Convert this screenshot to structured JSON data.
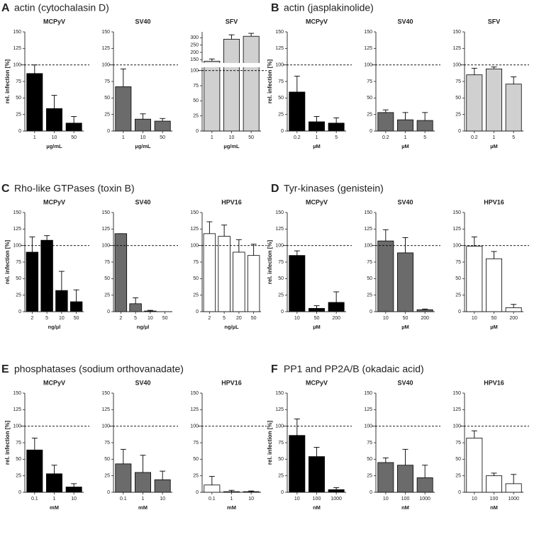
{
  "panels": [
    {
      "letter": "A",
      "title": "actin (cytochalasin D)"
    },
    {
      "letter": "B",
      "title": "actin (jasplakinolide)"
    },
    {
      "letter": "C",
      "title": "Rho-like GTPases (toxin B)"
    },
    {
      "letter": "D",
      "title": "Tyr-kinases (genistein)"
    },
    {
      "letter": "E",
      "title": "phosphatases (sodium orthovanadate)"
    },
    {
      "letter": "F",
      "title": "PP1 and PP2A/B (okadaic acid)"
    }
  ],
  "chart_data": [
    {
      "type": "bar",
      "title": "MCPyV",
      "ylabel": "rel. infection [%]",
      "xlabel": "µg/mL",
      "categories": [
        "1",
        "10",
        "50"
      ],
      "values": [
        87,
        34,
        12
      ],
      "errors": [
        13,
        20,
        10
      ],
      "color": "#000000",
      "ylim": [
        0,
        150
      ],
      "yticks": [
        0,
        25,
        50,
        75,
        100,
        125,
        150
      ],
      "refline": 100
    },
    {
      "type": "bar",
      "title": "SV40",
      "xlabel": "µg/mL",
      "categories": [
        "1",
        "10",
        "50"
      ],
      "values": [
        67,
        18,
        15
      ],
      "errors": [
        27,
        8,
        4
      ],
      "color": "#6b6b6b",
      "ylim": [
        0,
        150
      ],
      "yticks": [
        0,
        25,
        50,
        75,
        100,
        125,
        150
      ],
      "refline": 100
    },
    {
      "type": "bar",
      "title": "SFV",
      "xlabel": "µg/mL",
      "categories": [
        "1",
        "10",
        "50"
      ],
      "values": [
        140,
        290,
        310
      ],
      "errors": [
        15,
        30,
        20
      ],
      "color": "#d0d0d0",
      "ylim": [
        0,
        340
      ],
      "ybreak": [
        105,
        130
      ],
      "yticks": [
        0,
        25,
        50,
        75,
        100,
        150,
        200,
        250,
        300
      ],
      "refline": 100
    },
    {
      "type": "bar",
      "title": "MCPyV",
      "ylabel": "rel. infection [%]",
      "xlabel": "µM",
      "categories": [
        "0.2",
        "1",
        "5"
      ],
      "values": [
        59,
        14,
        12
      ],
      "errors": [
        24,
        8,
        8
      ],
      "color": "#000000",
      "ylim": [
        0,
        150
      ],
      "yticks": [
        0,
        25,
        50,
        75,
        100,
        125,
        150
      ],
      "refline": 100
    },
    {
      "type": "bar",
      "title": "SV40",
      "xlabel": "µM",
      "categories": [
        "0.2",
        "1",
        "5"
      ],
      "values": [
        28,
        17,
        16
      ],
      "errors": [
        4,
        11,
        12
      ],
      "color": "#6b6b6b",
      "ylim": [
        0,
        150
      ],
      "yticks": [
        0,
        25,
        50,
        75,
        100,
        125,
        150
      ],
      "refline": 100
    },
    {
      "type": "bar",
      "title": "SFV",
      "xlabel": "µM",
      "categories": [
        "0.2",
        "1",
        "5"
      ],
      "values": [
        85,
        94,
        71
      ],
      "errors": [
        10,
        3,
        11
      ],
      "color": "#d0d0d0",
      "ylim": [
        0,
        150
      ],
      "yticks": [
        0,
        25,
        50,
        75,
        100,
        125,
        150
      ],
      "refline": 100
    },
    {
      "type": "bar",
      "title": "MCPyV",
      "ylabel": "rel. infection [%]",
      "xlabel": "ng/µl",
      "categories": [
        "2",
        "5",
        "10",
        "50"
      ],
      "values": [
        90,
        108,
        32,
        15
      ],
      "errors": [
        23,
        7,
        29,
        18
      ],
      "color": "#000000",
      "ylim": [
        0,
        150
      ],
      "yticks": [
        0,
        25,
        50,
        75,
        100,
        125,
        150
      ],
      "refline": 100
    },
    {
      "type": "bar",
      "title": "SV40",
      "xlabel": "ng/µl",
      "categories": [
        "2",
        "5",
        "10",
        "50"
      ],
      "values": [
        118,
        12,
        1,
        0
      ],
      "errors": [
        0,
        9,
        1,
        0
      ],
      "color": "#6b6b6b",
      "ylim": [
        0,
        150
      ],
      "yticks": [
        0,
        25,
        50,
        75,
        100,
        125,
        150
      ],
      "refline": 100
    },
    {
      "type": "bar",
      "title": "HPV16",
      "xlabel": "ng/µL",
      "categories": [
        "2",
        "5",
        "20",
        "50"
      ],
      "values": [
        118,
        114,
        90,
        85
      ],
      "errors": [
        18,
        17,
        19,
        17
      ],
      "color": "#ffffff",
      "ylim": [
        0,
        150
      ],
      "yticks": [
        0,
        25,
        50,
        75,
        100,
        125,
        150
      ],
      "refline": 100
    },
    {
      "type": "bar",
      "title": "MCPyV",
      "ylabel": "rel. infection [%]",
      "xlabel": "µM",
      "categories": [
        "10",
        "50",
        "200"
      ],
      "values": [
        85,
        5,
        14
      ],
      "errors": [
        7,
        4,
        16
      ],
      "color": "#000000",
      "ylim": [
        0,
        150
      ],
      "yticks": [
        0,
        25,
        50,
        75,
        100,
        125,
        150
      ],
      "refline": 100
    },
    {
      "type": "bar",
      "title": "SV40",
      "xlabel": "µM",
      "categories": [
        "10",
        "50",
        "200"
      ],
      "values": [
        107,
        89,
        3
      ],
      "errors": [
        17,
        23,
        1
      ],
      "color": "#6b6b6b",
      "ylim": [
        0,
        150
      ],
      "yticks": [
        0,
        25,
        50,
        75,
        100,
        125,
        150
      ],
      "refline": 100
    },
    {
      "type": "bar",
      "title": "HPV16",
      "xlabel": "µM",
      "categories": [
        "10",
        "50",
        "200"
      ],
      "values": [
        99,
        80,
        6
      ],
      "errors": [
        14,
        11,
        5
      ],
      "color": "#ffffff",
      "ylim": [
        0,
        150
      ],
      "yticks": [
        0,
        25,
        50,
        75,
        100,
        125,
        150
      ],
      "refline": 100
    },
    {
      "type": "bar",
      "title": "MCPyV",
      "ylabel": "rel. infection [%]",
      "xlabel": "mM",
      "categories": [
        "0.1",
        "1",
        "10"
      ],
      "values": [
        64,
        28,
        8
      ],
      "errors": [
        18,
        13,
        5
      ],
      "color": "#000000",
      "ylim": [
        0,
        150
      ],
      "yticks": [
        0,
        25,
        50,
        75,
        100,
        125,
        150
      ],
      "refline": 100
    },
    {
      "type": "bar",
      "title": "SV40",
      "xlabel": "mM",
      "categories": [
        "0.1",
        "1",
        "10"
      ],
      "values": [
        43,
        30,
        19
      ],
      "errors": [
        22,
        26,
        13
      ],
      "color": "#6b6b6b",
      "ylim": [
        0,
        150
      ],
      "yticks": [
        0,
        25,
        50,
        75,
        100,
        125,
        150
      ],
      "refline": 100
    },
    {
      "type": "bar",
      "title": "HPV16",
      "xlabel": "mM",
      "categories": [
        "0.1",
        "1",
        "10"
      ],
      "values": [
        11,
        1,
        1
      ],
      "errors": [
        13,
        2,
        1
      ],
      "color": "#ffffff",
      "ylim": [
        0,
        150
      ],
      "yticks": [
        0,
        25,
        50,
        75,
        100,
        125,
        150
      ],
      "refline": 100
    },
    {
      "type": "bar",
      "title": "MCPyV",
      "ylabel": "rel. infection [%]",
      "xlabel": "nM",
      "categories": [
        "10",
        "100",
        "1000"
      ],
      "values": [
        86,
        54,
        4
      ],
      "errors": [
        25,
        14,
        3
      ],
      "color": "#000000",
      "ylim": [
        0,
        150
      ],
      "yticks": [
        0,
        25,
        50,
        75,
        100,
        125,
        150
      ],
      "refline": 100
    },
    {
      "type": "bar",
      "title": "SV40",
      "xlabel": "nM",
      "categories": [
        "10",
        "100",
        "1000"
      ],
      "values": [
        45,
        41,
        22
      ],
      "errors": [
        7,
        24,
        19
      ],
      "color": "#6b6b6b",
      "ylim": [
        0,
        150
      ],
      "yticks": [
        0,
        25,
        50,
        75,
        100,
        125,
        150
      ],
      "refline": 100
    },
    {
      "type": "bar",
      "title": "HPV16",
      "xlabel": "nM",
      "categories": [
        "10",
        "100",
        "1000"
      ],
      "values": [
        82,
        25,
        13
      ],
      "errors": [
        11,
        4,
        14
      ],
      "color": "#ffffff",
      "ylim": [
        0,
        150
      ],
      "yticks": [
        0,
        25,
        50,
        75,
        100,
        125,
        150
      ],
      "refline": 100
    }
  ]
}
